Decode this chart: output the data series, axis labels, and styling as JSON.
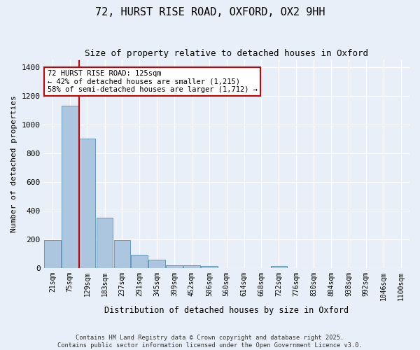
{
  "title": "72, HURST RISE ROAD, OXFORD, OX2 9HH",
  "subtitle": "Size of property relative to detached houses in Oxford",
  "xlabel": "Distribution of detached houses by size in Oxford",
  "ylabel": "Number of detached properties",
  "bar_categories": [
    "21sqm",
    "75sqm",
    "129sqm",
    "183sqm",
    "237sqm",
    "291sqm",
    "345sqm",
    "399sqm",
    "452sqm",
    "506sqm",
    "560sqm",
    "614sqm",
    "668sqm",
    "722sqm",
    "776sqm",
    "830sqm",
    "884sqm",
    "938sqm",
    "992sqm",
    "1046sqm",
    "1100sqm"
  ],
  "bar_values": [
    195,
    1130,
    900,
    350,
    195,
    90,
    55,
    20,
    20,
    12,
    0,
    0,
    0,
    12,
    0,
    0,
    0,
    0,
    0,
    0,
    0
  ],
  "bar_color": "#adc6df",
  "bar_edge_color": "#6699bb",
  "vline_color": "#cc0000",
  "vline_x_index": 1.525,
  "annotation_text": "72 HURST RISE ROAD: 125sqm\n← 42% of detached houses are smaller (1,215)\n58% of semi-detached houses are larger (1,712) →",
  "ylim": [
    0,
    1450
  ],
  "bg_color": "#e8eff8",
  "grid_color": "#ffffff",
  "footnote": "Contains HM Land Registry data © Crown copyright and database right 2025.\nContains public sector information licensed under the Open Government Licence v3.0."
}
